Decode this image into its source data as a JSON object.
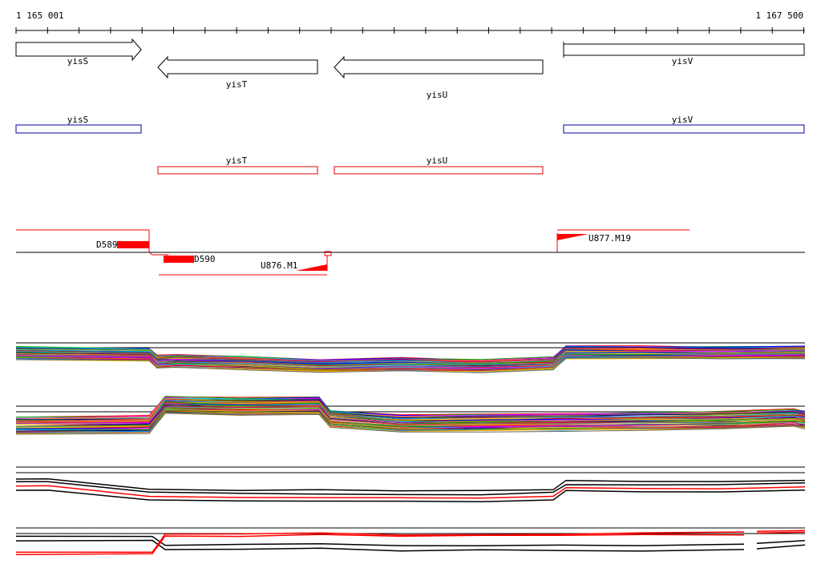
{
  "ruler": {
    "start_label": "1 165 001",
    "end_label": "1 167 500"
  },
  "genes": [
    {
      "name": "yisS",
      "strand": "+"
    },
    {
      "name": "yisT",
      "strand": "-"
    },
    {
      "name": "yisU",
      "strand": "-"
    },
    {
      "name": "yisV",
      "strand": "+"
    }
  ],
  "cds_boxes": [
    {
      "name": "yisS",
      "color": "#0000aa"
    },
    {
      "name": "yisV",
      "color": "#0000aa"
    },
    {
      "name": "yisT",
      "color": "#dd0000"
    },
    {
      "name": "yisU",
      "color": "#dd0000"
    }
  ],
  "segments": [
    {
      "name": "D589"
    },
    {
      "name": "D590"
    },
    {
      "name": "U876.M1"
    },
    {
      "name": "U877.M19"
    }
  ],
  "colors": {
    "accent_red": "#ff0000",
    "box_blue": "#0000aa"
  }
}
